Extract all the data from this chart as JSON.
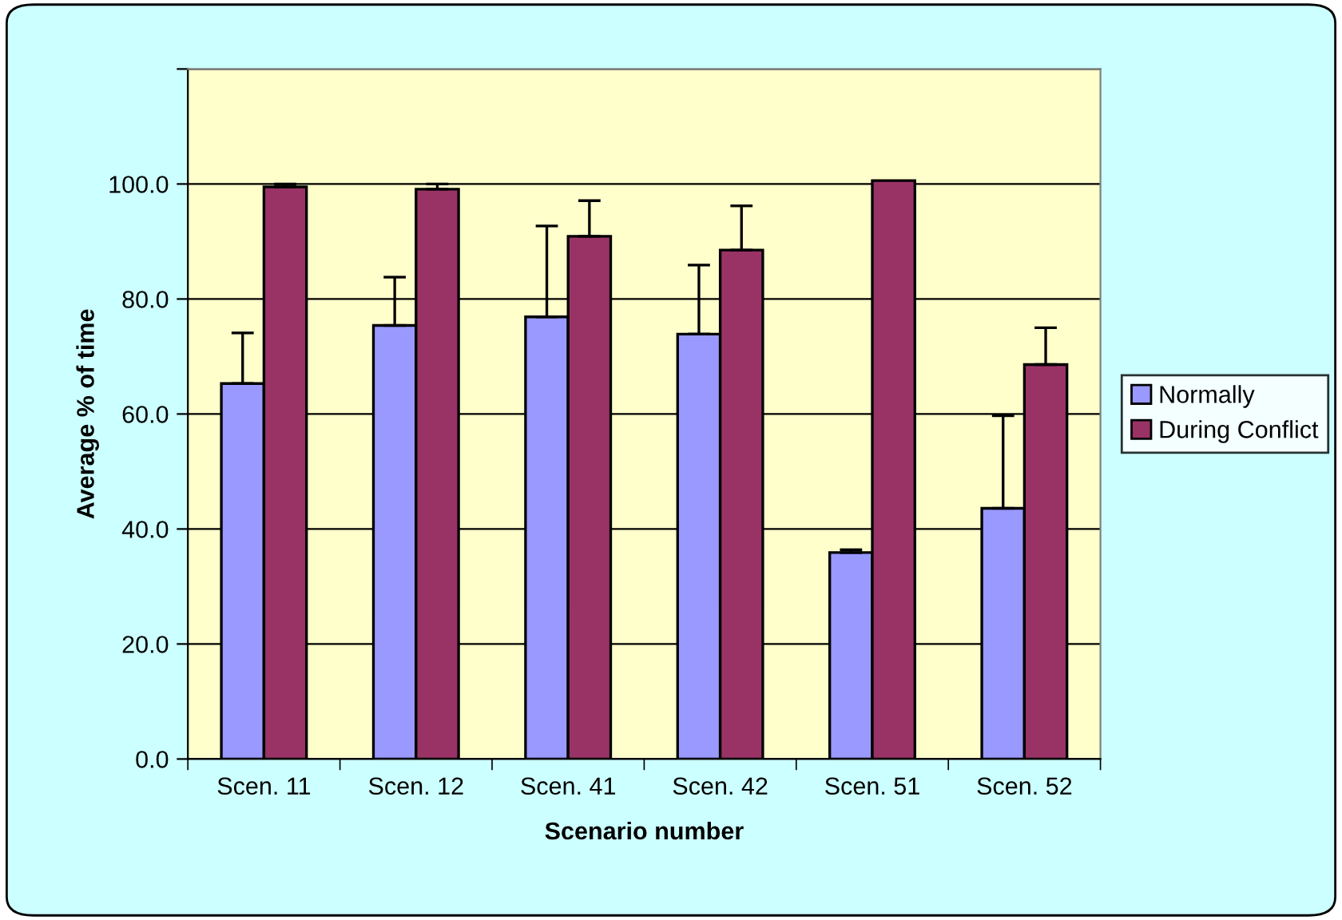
{
  "chart_data": {
    "type": "bar",
    "xlabel": "Scenario number",
    "ylabel": "Average % of time",
    "categories": [
      "Scen. 11",
      "Scen. 12",
      "Scen. 41",
      "Scen. 42",
      "Scen. 51",
      "Scen. 52"
    ],
    "series": [
      {
        "name": "Normally",
        "color": "#9999ff",
        "values": [
          65.3,
          75.4,
          76.9,
          73.9,
          35.9,
          43.6
        ],
        "errors": [
          [
            65.3,
            74.1
          ],
          [
            75.4,
            83.8
          ],
          [
            76.9,
            92.7
          ],
          [
            73.9,
            85.9
          ],
          [
            35.9,
            36.4
          ],
          [
            43.6,
            59.7
          ]
        ]
      },
      {
        "name": "During Conflict",
        "color": "#993366",
        "values": [
          99.5,
          99.1,
          90.9,
          88.5,
          100.6,
          68.6
        ],
        "errors": [
          [
            99.5,
            100.0
          ],
          [
            99.1,
            100.0
          ],
          [
            90.9,
            97.1
          ],
          [
            88.5,
            96.2
          ],
          null,
          [
            68.6,
            75.0
          ]
        ]
      }
    ],
    "ylim": [
      0,
      120
    ],
    "yticks": [
      {
        "value": 0,
        "label": "0.0"
      },
      {
        "value": 20,
        "label": "20.0"
      },
      {
        "value": 40,
        "label": "40.0"
      },
      {
        "value": 60,
        "label": "60.0"
      },
      {
        "value": 80,
        "label": "80.0"
      },
      {
        "value": 100,
        "label": "100.0"
      },
      {
        "value": 120,
        "label": null
      }
    ],
    "grid": "y",
    "legend": "right"
  }
}
